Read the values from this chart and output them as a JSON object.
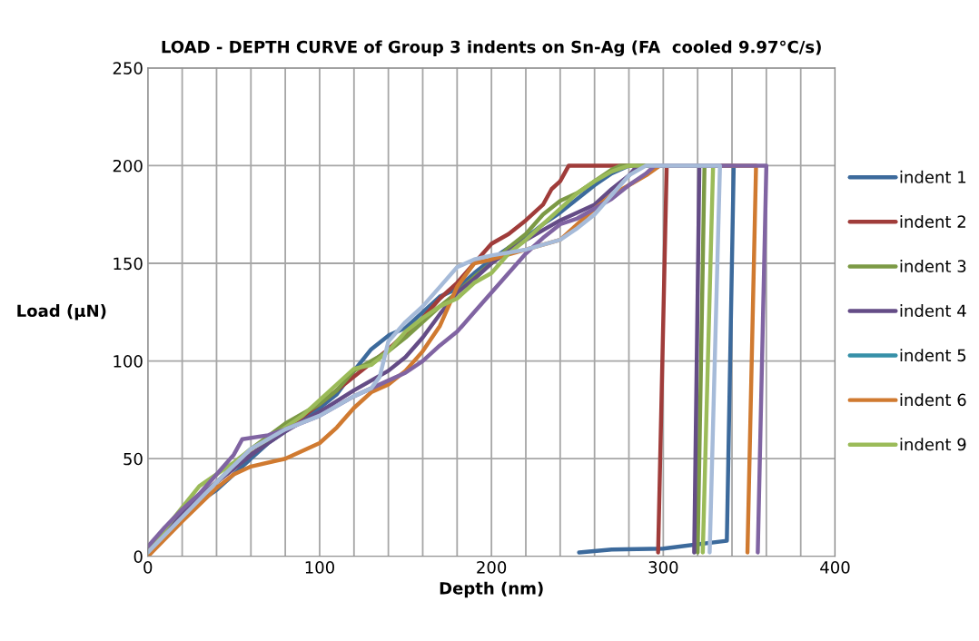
{
  "chart_data": {
    "type": "line",
    "title": "LOAD - DEPTH CURVE of Group 3 indents on Sn-Ag (FA  cooled 9.97°C/s)",
    "xlabel": "Depth (nm)",
    "ylabel": "Load (µN)",
    "xlim": [
      0,
      400
    ],
    "ylim": [
      0,
      250
    ],
    "xticks": [
      0,
      {
        "value": 20,
        "label": null
      },
      {
        "value": 40,
        "label": null
      },
      {
        "value": 60,
        "label": null
      },
      {
        "value": 80,
        "label": null
      },
      100,
      {
        "value": 120,
        "label": null
      },
      {
        "value": 140,
        "label": null
      },
      {
        "value": 160,
        "label": null
      },
      {
        "value": 180,
        "label": null
      },
      200,
      {
        "value": 220,
        "label": null
      },
      {
        "value": 240,
        "label": null
      },
      {
        "value": 260,
        "label": null
      },
      {
        "value": 280,
        "label": null
      },
      300,
      {
        "value": 320,
        "label": null
      },
      {
        "value": 340,
        "label": null
      },
      {
        "value": 360,
        "label": null
      },
      {
        "value": 380,
        "label": null
      },
      400
    ],
    "yticks": [
      0,
      50,
      100,
      150,
      200,
      250
    ],
    "grid": true,
    "legend": "right",
    "marker": "none",
    "line_style": "solid",
    "series": [
      {
        "name": "indent 1",
        "color": "#3c6a9c",
        "x": [
          0,
          10,
          20,
          30,
          40,
          50,
          60,
          70,
          80,
          90,
          100,
          110,
          120,
          130,
          140,
          150,
          160,
          170,
          180,
          190,
          200,
          210,
          220,
          230,
          240,
          250,
          260,
          270,
          280,
          341,
          337,
          300,
          270,
          251
        ],
        "values": [
          2,
          12,
          20,
          28,
          34,
          42,
          50,
          58,
          64,
          70,
          76,
          83,
          95,
          106,
          113,
          117,
          125,
          133,
          137,
          145,
          152,
          158,
          163,
          170,
          176,
          183,
          190,
          196,
          200,
          200,
          8,
          4,
          3.5,
          2
        ]
      },
      {
        "name": "indent 2",
        "color": "#a03c3a",
        "x": [
          0,
          10,
          20,
          40,
          60,
          80,
          100,
          120,
          140,
          160,
          170,
          180,
          190,
          200,
          210,
          220,
          230,
          235,
          240,
          245,
          302,
          297
        ],
        "values": [
          3,
          13,
          22,
          38,
          52,
          65,
          78,
          92,
          106,
          122,
          132,
          140,
          150,
          160,
          165,
          172,
          180,
          188,
          192,
          200,
          200,
          2
        ]
      },
      {
        "name": "indent 3",
        "color": "#7c9a45",
        "x": [
          0,
          20,
          40,
          60,
          80,
          100,
          110,
          120,
          140,
          150,
          160,
          170,
          180,
          190,
          200,
          210,
          220,
          230,
          240,
          250,
          260,
          270,
          275,
          324,
          320
        ],
        "values": [
          3,
          22,
          38,
          55,
          68,
          78,
          85,
          95,
          105,
          112,
          120,
          128,
          135,
          143,
          150,
          158,
          165,
          175,
          182,
          186,
          192,
          198,
          200,
          200,
          2
        ]
      },
      {
        "name": "indent 4",
        "color": "#644c86",
        "x": [
          0,
          20,
          40,
          60,
          80,
          100,
          120,
          140,
          150,
          160,
          170,
          180,
          190,
          200,
          220,
          240,
          260,
          270,
          280,
          285,
          321,
          318
        ],
        "values": [
          3,
          22,
          38,
          52,
          64,
          74,
          85,
          95,
          102,
          112,
          124,
          135,
          142,
          150,
          162,
          172,
          180,
          188,
          195,
          200,
          200,
          2
        ]
      },
      {
        "name": "indent 5",
        "color": "#3690a8"
      },
      {
        "name": "indent 6",
        "color": "#d07a30",
        "x": [
          0,
          20,
          40,
          50,
          60,
          80,
          100,
          110,
          120,
          130,
          140,
          150,
          160,
          170,
          180,
          190,
          200,
          220,
          240,
          250,
          260,
          270,
          280,
          290,
          298,
          354,
          349
        ],
        "values": [
          0,
          18,
          35,
          42,
          46,
          50,
          58,
          66,
          76,
          84,
          88,
          95,
          105,
          118,
          138,
          150,
          152,
          157,
          162,
          170,
          178,
          185,
          190,
          195,
          200,
          200,
          2
        ]
      },
      {
        "name": "indent 9",
        "color": "#9bbb59",
        "x": [
          0,
          10,
          20,
          30,
          40,
          50,
          60,
          70,
          80,
          90,
          100,
          110,
          120,
          130,
          140,
          150,
          160,
          170,
          180,
          190,
          200,
          210,
          220,
          230,
          240,
          250,
          260,
          270,
          280,
          329,
          323
        ],
        "values": [
          2,
          14,
          25,
          36,
          42,
          48,
          55,
          60,
          66,
          72,
          80,
          88,
          96,
          98,
          105,
          115,
          122,
          128,
          132,
          140,
          145,
          155,
          162,
          170,
          178,
          186,
          192,
          197,
          200,
          200,
          2
        ]
      },
      {
        "color": "#8064a2",
        "x": [
          0,
          10,
          20,
          30,
          40,
          50,
          55,
          70,
          80,
          100,
          120,
          140,
          150,
          160,
          170,
          180,
          190,
          200,
          210,
          220,
          230,
          240,
          250,
          260,
          270,
          280,
          290,
          295,
          360,
          355
        ],
        "values": [
          5,
          15,
          24,
          32,
          42,
          52,
          60,
          62,
          65,
          72,
          82,
          90,
          94,
          100,
          108,
          115,
          125,
          135,
          145,
          155,
          163,
          170,
          173,
          178,
          183,
          190,
          196,
          200,
          200,
          2
        ]
      },
      {
        "color": "#a6bbd9",
        "x": [
          0,
          20,
          40,
          60,
          80,
          100,
          120,
          130,
          135,
          140,
          150,
          160,
          170,
          180,
          190,
          200,
          220,
          240,
          250,
          260,
          270,
          280,
          290,
          333,
          327
        ],
        "values": [
          2,
          20,
          38,
          55,
          65,
          72,
          82,
          86,
          92,
          110,
          120,
          128,
          138,
          148,
          152,
          154,
          157,
          162,
          168,
          175,
          185,
          195,
          200,
          200,
          2
        ]
      }
    ]
  }
}
